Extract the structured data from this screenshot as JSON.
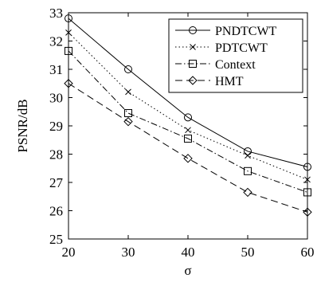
{
  "chart_data": {
    "type": "line",
    "title": "",
    "xlabel": "σ",
    "ylabel": "PSNR/dB",
    "x": [
      20,
      30,
      40,
      50,
      60
    ],
    "xlim": [
      20,
      60
    ],
    "ylim": [
      25,
      33
    ],
    "xticks": [
      "20",
      "30",
      "40",
      "50",
      "60"
    ],
    "yticks": [
      "25",
      "26",
      "27",
      "28",
      "29",
      "30",
      "31",
      "32",
      "33"
    ],
    "grid": false,
    "legend_position": "top-right",
    "series": [
      {
        "name": "PNDTCWT",
        "values": [
          32.8,
          31.0,
          29.3,
          28.1,
          27.55
        ],
        "marker": "circle",
        "dash": "solid"
      },
      {
        "name": "PDTCWT",
        "values": [
          32.3,
          30.2,
          28.85,
          27.95,
          27.1
        ],
        "marker": "x",
        "dash": "dotted"
      },
      {
        "name": "Context",
        "values": [
          31.65,
          29.45,
          28.55,
          27.4,
          26.65
        ],
        "marker": "square",
        "dash": "dashdot"
      },
      {
        "name": "HMT",
        "values": [
          30.5,
          29.15,
          27.85,
          26.65,
          25.95
        ],
        "marker": "diamond",
        "dash": "dashed"
      }
    ]
  }
}
